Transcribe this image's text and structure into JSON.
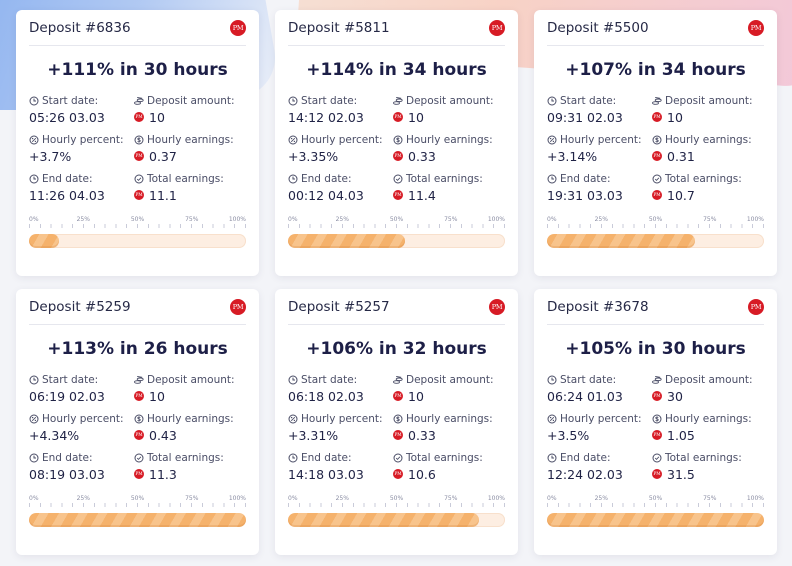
{
  "labels": {
    "start": "Start date:",
    "amount": "Deposit amount:",
    "hourly_percent": "Hourly percent:",
    "hourly_earnings": "Hourly earnings:",
    "end": "End date:",
    "total": "Total earnings:",
    "pm_badge": "PM",
    "ticks": [
      "0%",
      "25%",
      "50%",
      "75%",
      "100%"
    ]
  },
  "colors": {
    "pm_red": "#d71b25",
    "progress_orange": "#f5b26c",
    "headline": "#1d1f47"
  },
  "cards": [
    {
      "title": "Deposit #6836",
      "headline": "+111% in 30 hours",
      "start": "05:26 03.03",
      "amount": "10",
      "hourly_percent": "+3.7%",
      "hourly_earnings": "0.37",
      "end": "11:26 04.03",
      "total": "11.1",
      "progress": 0.14
    },
    {
      "title": "Deposit #5811",
      "headline": "+114% in 34 hours",
      "start": "14:12 02.03",
      "amount": "10",
      "hourly_percent": "+3.35%",
      "hourly_earnings": "0.33",
      "end": "00:12 04.03",
      "total": "11.4",
      "progress": 0.54
    },
    {
      "title": "Deposit #5500",
      "headline": "+107% in 34 hours",
      "start": "09:31 02.03",
      "amount": "10",
      "hourly_percent": "+3.14%",
      "hourly_earnings": "0.31",
      "end": "19:31 03.03",
      "total": "10.7",
      "progress": 0.68
    },
    {
      "title": "Deposit #5259",
      "headline": "+113% in 26 hours",
      "start": "06:19 02.03",
      "amount": "10",
      "hourly_percent": "+4.34%",
      "hourly_earnings": "0.43",
      "end": "08:19 03.03",
      "total": "11.3",
      "progress": 1.0
    },
    {
      "title": "Deposit #5257",
      "headline": "+106% in 32 hours",
      "start": "06:18 02.03",
      "amount": "10",
      "hourly_percent": "+3.31%",
      "hourly_earnings": "0.33",
      "end": "14:18 03.03",
      "total": "10.6",
      "progress": 0.88
    },
    {
      "title": "Deposit #3678",
      "headline": "+105% in 30 hours",
      "start": "06:24 01.03",
      "amount": "30",
      "hourly_percent": "+3.5%",
      "hourly_earnings": "1.05",
      "end": "12:24 02.03",
      "total": "31.5",
      "progress": 1.0
    }
  ]
}
